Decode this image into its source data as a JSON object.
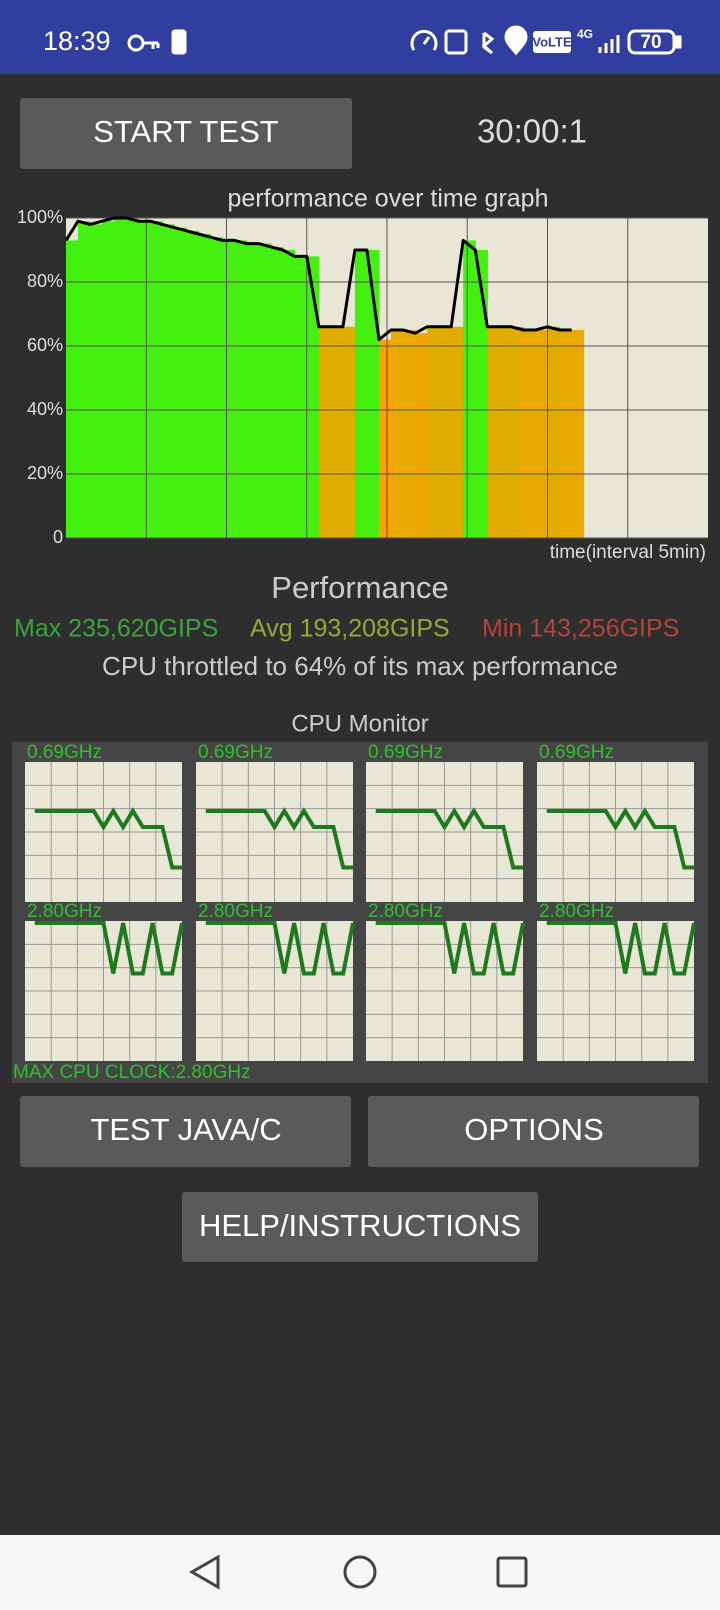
{
  "status_bar": {
    "time": "18:39",
    "network": "4G",
    "volte": "VoLTE",
    "battery": "70"
  },
  "start_button": "START TEST",
  "timer": "30:00:1",
  "performance_graph": {
    "type": "area",
    "title": "performance over time graph",
    "xlabel": "time(interval 5min)",
    "xlim": [
      0,
      40
    ],
    "xticks": [
      5,
      10,
      15,
      20,
      25,
      30,
      35
    ],
    "ylim": [
      0,
      100
    ],
    "yticks": [
      {
        "value": 0,
        "label": "0"
      },
      {
        "value": 20,
        "label": "20%"
      },
      {
        "value": 40,
        "label": "40%"
      },
      {
        "value": 60,
        "label": "60%"
      },
      {
        "value": 80,
        "label": "80%"
      },
      {
        "value": 100,
        "label": "100%"
      }
    ],
    "grid": true,
    "colors": [
      "#ffa000",
      "#44f010"
    ],
    "line_color": "#000000",
    "x": [
      0,
      0.75,
      1.5,
      2.25,
      3,
      3.75,
      4.5,
      5.25,
      6,
      6.75,
      7.5,
      8.25,
      9,
      9.75,
      10.5,
      11.25,
      12,
      12.75,
      13.5,
      14.25,
      15,
      15.75,
      16.5,
      17.25,
      18,
      18.75,
      19.5,
      20.25,
      21,
      21.75,
      22.5,
      23.25,
      24,
      24.75,
      25.5,
      26.25,
      27,
      27.75,
      28.5,
      29.25,
      30,
      30.75,
      31.5
    ],
    "values": [
      93,
      99,
      98,
      99,
      100,
      100,
      99,
      99,
      98,
      97,
      96,
      95,
      94,
      93,
      93,
      92,
      92,
      91,
      90,
      88,
      88,
      66,
      66,
      66,
      90,
      90,
      62,
      65,
      65,
      64,
      66,
      66,
      66,
      93,
      90,
      66,
      66,
      66,
      65,
      65,
      66,
      65,
      65
    ]
  },
  "performance": {
    "title": "Performance",
    "max": "Max 235,620GIPS",
    "avg": "Avg 193,208GIPS",
    "min": "Min 143,256GIPS",
    "throttle": "CPU throttled to 64% of its max performance"
  },
  "cpu_monitor": {
    "title": "CPU Monitor",
    "ylim": [
      0,
      2.8
    ],
    "footer": "MAX CPU CLOCK:2.80GHz",
    "cores": [
      {
        "label": "0.69GHz",
        "values": [
          null,
          1.82,
          1.82,
          1.82,
          1.82,
          1.82,
          1.82,
          1.82,
          1.5,
          1.82,
          1.5,
          1.82,
          1.5,
          1.5,
          1.5,
          0.69,
          0.69
        ]
      },
      {
        "label": "0.69GHz",
        "values": [
          null,
          1.82,
          1.82,
          1.82,
          1.82,
          1.82,
          1.82,
          1.82,
          1.5,
          1.82,
          1.5,
          1.82,
          1.5,
          1.5,
          1.5,
          0.69,
          0.69
        ]
      },
      {
        "label": "0.69GHz",
        "values": [
          null,
          1.82,
          1.82,
          1.82,
          1.82,
          1.82,
          1.82,
          1.82,
          1.5,
          1.82,
          1.5,
          1.82,
          1.5,
          1.5,
          1.5,
          0.69,
          0.69
        ]
      },
      {
        "label": "0.69GHz",
        "values": [
          null,
          1.82,
          1.82,
          1.82,
          1.82,
          1.82,
          1.82,
          1.82,
          1.5,
          1.82,
          1.5,
          1.82,
          1.5,
          1.5,
          1.5,
          0.69,
          0.69
        ]
      },
      {
        "label": "2.80GHz",
        "values": [
          null,
          2.8,
          2.8,
          2.8,
          2.8,
          2.8,
          2.8,
          2.8,
          2.8,
          1.75,
          2.8,
          1.75,
          1.75,
          2.8,
          1.75,
          1.75,
          2.8
        ]
      },
      {
        "label": "2.80GHz",
        "values": [
          null,
          2.8,
          2.8,
          2.8,
          2.8,
          2.8,
          2.8,
          2.8,
          2.8,
          1.75,
          2.8,
          1.75,
          1.75,
          2.8,
          1.75,
          1.75,
          2.8
        ]
      },
      {
        "label": "2.80GHz",
        "values": [
          null,
          2.8,
          2.8,
          2.8,
          2.8,
          2.8,
          2.8,
          2.8,
          2.8,
          1.75,
          2.8,
          1.75,
          1.75,
          2.8,
          1.75,
          1.75,
          2.8
        ]
      },
      {
        "label": "2.80GHz",
        "values": [
          null,
          2.8,
          2.8,
          2.8,
          2.8,
          2.8,
          2.8,
          2.8,
          2.8,
          1.75,
          2.8,
          1.75,
          1.75,
          2.8,
          1.75,
          1.75,
          2.8
        ]
      }
    ]
  },
  "buttons": [
    "TEST JAVA/C",
    "OPTIONS",
    "HELP/INSTRUCTIONS"
  ]
}
